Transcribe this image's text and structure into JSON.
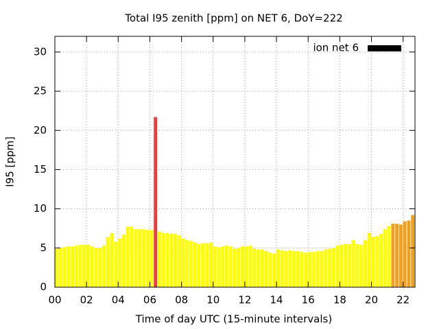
{
  "chart_data": {
    "type": "bar",
    "title": "Total I95 zenith [ppm] on NET 6, DoY=222",
    "x_label": "Time of day UTC (15-minute intervals)",
    "y_label": "I95 [ppm]",
    "x": [
      0,
      0.25,
      0.5,
      0.75,
      1,
      1.25,
      1.5,
      1.75,
      2,
      2.25,
      2.5,
      2.75,
      3,
      3.25,
      3.5,
      3.75,
      4,
      4.25,
      4.5,
      4.75,
      5,
      5.25,
      5.5,
      5.75,
      6,
      6.25,
      6.5,
      6.75,
      7,
      7.25,
      7.5,
      7.75,
      8,
      8.25,
      8.5,
      8.75,
      9,
      9.25,
      9.5,
      9.75,
      10,
      10.25,
      10.5,
      10.75,
      11,
      11.25,
      11.5,
      11.75,
      12,
      12.25,
      12.5,
      12.75,
      13,
      13.25,
      13.5,
      13.75,
      14,
      14.25,
      14.5,
      14.75,
      15,
      15.25,
      15.5,
      15.75,
      16,
      16.25,
      16.5,
      16.75,
      17,
      17.25,
      17.5,
      17.75,
      18,
      18.25,
      18.5,
      18.75,
      19,
      19.25,
      19.5,
      19.75,
      20,
      20.25,
      20.5,
      20.75,
      21,
      21.25,
      21.5,
      21.75,
      22,
      22.25,
      22.5
    ],
    "series": [
      {
        "name": "ion net 6",
        "color": "#000000",
        "values": [
          4.9,
          5.0,
          5.1,
          5.2,
          5.2,
          5.3,
          5.4,
          5.4,
          5.4,
          5.2,
          5.0,
          5.0,
          5.3,
          6.4,
          6.9,
          5.8,
          6.2,
          6.7,
          7.7,
          7.7,
          7.4,
          7.4,
          7.4,
          7.3,
          7.3,
          21.7,
          7.1,
          6.9,
          6.9,
          6.8,
          6.8,
          6.6,
          6.2,
          6.0,
          5.9,
          5.7,
          5.5,
          5.6,
          5.6,
          5.7,
          5.2,
          5.1,
          5.2,
          5.3,
          5.2,
          4.9,
          5.0,
          5.2,
          5.2,
          5.3,
          4.9,
          4.8,
          4.8,
          4.6,
          4.4,
          4.3,
          4.8,
          4.7,
          4.6,
          4.7,
          4.6,
          4.6,
          4.5,
          4.4,
          4.5,
          4.5,
          4.6,
          4.6,
          4.8,
          4.9,
          5.0,
          5.3,
          5.4,
          5.5,
          5.5,
          6.0,
          5.5,
          5.4,
          6.0,
          6.9,
          6.4,
          6.5,
          6.8,
          7.4,
          7.8,
          8.1,
          8.1,
          8.0,
          8.4,
          8.5,
          9.2
        ],
        "colors": [
          "#ffff00",
          "#ffff00",
          "#ffff00",
          "#ffff00",
          "#ffff00",
          "#ffff00",
          "#ffff00",
          "#ffff00",
          "#ffff00",
          "#ffff00",
          "#ffff00",
          "#ffff00",
          "#ffff00",
          "#ffff00",
          "#ffff00",
          "#ffff00",
          "#ffff00",
          "#ffff00",
          "#ffff00",
          "#ffff00",
          "#ffff00",
          "#ffff00",
          "#ffff00",
          "#ffff00",
          "#ffff00",
          "#e84040",
          "#ffff00",
          "#ffff00",
          "#ffff00",
          "#ffff00",
          "#ffff00",
          "#ffff00",
          "#ffff00",
          "#ffff00",
          "#ffff00",
          "#ffff00",
          "#ffff00",
          "#ffff00",
          "#ffff00",
          "#ffff00",
          "#ffff00",
          "#ffff00",
          "#ffff00",
          "#ffff00",
          "#ffff00",
          "#ffff00",
          "#ffff00",
          "#ffff00",
          "#ffff00",
          "#ffff00",
          "#ffff00",
          "#ffff00",
          "#ffff00",
          "#ffff00",
          "#ffff00",
          "#ffff00",
          "#ffff00",
          "#ffff00",
          "#ffff00",
          "#ffff00",
          "#ffff00",
          "#ffff00",
          "#ffff00",
          "#ffff00",
          "#ffff00",
          "#ffff00",
          "#ffff00",
          "#ffff00",
          "#ffff00",
          "#ffff00",
          "#ffff00",
          "#ffff00",
          "#ffff00",
          "#ffff00",
          "#ffff00",
          "#ffff00",
          "#ffff00",
          "#ffff00",
          "#ffff00",
          "#ffff00",
          "#ffff00",
          "#ffff00",
          "#ffff00",
          "#ffff00",
          "#ffff00",
          "#f0a020",
          "#f0a020",
          "#f0a020",
          "#f0a020",
          "#f0a020",
          "#f0a020"
        ]
      }
    ],
    "bar_width": 0.25,
    "xlim": [
      0,
      22.75
    ],
    "xticks": [
      {
        "value": 0,
        "label": "00"
      },
      {
        "value": 2,
        "label": "02"
      },
      {
        "value": 4,
        "label": "04"
      },
      {
        "value": 6,
        "label": "06"
      },
      {
        "value": 8,
        "label": "08"
      },
      {
        "value": 10,
        "label": "10"
      },
      {
        "value": 12,
        "label": "12"
      },
      {
        "value": 14,
        "label": "14"
      },
      {
        "value": 16,
        "label": "16"
      },
      {
        "value": 18,
        "label": "18"
      },
      {
        "value": 20,
        "label": "20"
      },
      {
        "value": 22,
        "label": "22"
      }
    ],
    "ylim": [
      0,
      32
    ],
    "yticks": [
      0,
      5,
      10,
      15,
      20,
      25,
      30
    ],
    "grid": true,
    "legend": "top-right"
  }
}
